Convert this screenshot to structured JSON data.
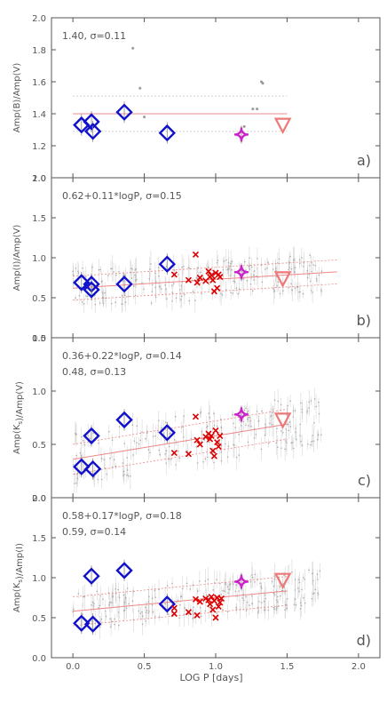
{
  "figure": {
    "xlabel": "LOG P [days]"
  },
  "colors": {
    "frame": "#555555",
    "blue": "#1111cc",
    "red": "#dd0000",
    "magenta": "#cc22cc",
    "salmon": "#ee7777",
    "fit": "#ee8888",
    "scatter": "#bbbbbb"
  },
  "chart_data": [
    {
      "type": "scatter",
      "panel": "a)",
      "ylabel": "Amp(B)/Amp(V)",
      "annotation": "1.40, σ=0.11",
      "annotation2": "",
      "xlim": [
        -0.15,
        2.15
      ],
      "ylim": [
        1.0,
        2.0
      ],
      "yticks": [
        "1.0",
        "1.2",
        "1.4",
        "1.6",
        "1.8",
        "2.0"
      ],
      "xticks": [],
      "fit": {
        "type": "constant",
        "value": 1.4,
        "sigma": 0.11,
        "x_range": [
          0.0,
          1.5
        ]
      },
      "series": [
        {
          "kind": "diamond-blue",
          "points": [
            [
              0.06,
              1.33
            ],
            [
              0.13,
              1.35
            ],
            [
              0.14,
              1.29
            ],
            [
              0.36,
              1.41
            ],
            [
              0.66,
              1.28
            ]
          ]
        },
        {
          "kind": "cross-red",
          "points": []
        },
        {
          "kind": "star-magenta",
          "points": [
            [
              1.18,
              1.27
            ]
          ]
        },
        {
          "kind": "triangle-salmon",
          "points": [
            [
              1.47,
              1.33
            ]
          ]
        },
        {
          "kind": "dot-grey",
          "points": [
            [
              0.42,
              1.81
            ],
            [
              0.47,
              1.56
            ],
            [
              0.5,
              1.38
            ],
            [
              1.2,
              1.32
            ],
            [
              1.26,
              1.43
            ],
            [
              1.29,
              1.43
            ],
            [
              1.32,
              1.6
            ],
            [
              1.33,
              1.59
            ]
          ]
        }
      ]
    },
    {
      "type": "scatter",
      "panel": "b)",
      "ylabel": "Amp(I)/Amp(V)",
      "annotation": "0.62+0.11*logP, σ=0.15",
      "annotation2": "",
      "xlim": [
        -0.15,
        2.15
      ],
      "ylim": [
        0.0,
        2.0
      ],
      "yticks": [
        "0.0",
        "0.5",
        "1.0",
        "1.5",
        "2.0"
      ],
      "xticks": [],
      "fit": {
        "type": "linear",
        "intercept": 0.62,
        "slope": 0.11,
        "sigma": 0.15,
        "x_range": [
          0.0,
          1.85
        ]
      },
      "series": [
        {
          "kind": "diamond-blue",
          "points": [
            [
              0.06,
              0.69
            ],
            [
              0.13,
              0.67
            ],
            [
              0.13,
              0.6
            ],
            [
              0.36,
              0.67
            ],
            [
              0.66,
              0.92
            ]
          ]
        },
        {
          "kind": "cross-red",
          "points": [
            [
              0.71,
              0.79
            ],
            [
              0.81,
              0.72
            ],
            [
              0.86,
              1.04
            ],
            [
              0.87,
              0.69
            ],
            [
              0.89,
              0.75
            ],
            [
              0.93,
              0.71
            ],
            [
              0.95,
              0.83
            ],
            [
              0.96,
              0.76
            ],
            [
              0.97,
              0.78
            ],
            [
              0.98,
              0.72
            ],
            [
              0.99,
              0.58
            ],
            [
              1.0,
              0.81
            ],
            [
              1.01,
              0.62
            ],
            [
              1.02,
              0.79
            ],
            [
              1.03,
              0.76
            ]
          ]
        },
        {
          "kind": "star-magenta",
          "points": [
            [
              1.18,
              0.82
            ]
          ]
        },
        {
          "kind": "triangle-salmon",
          "points": [
            [
              1.47,
              0.74
            ]
          ]
        },
        {
          "kind": "dot-grey",
          "points": []
        }
      ]
    },
    {
      "type": "scatter",
      "panel": "c)",
      "ylabel": "Amp(K_s)/Amp(V)",
      "annotation": "0.36+0.22*logP, σ=0.14",
      "annotation2": "0.48, σ=0.13",
      "xlim": [
        -0.15,
        2.15
      ],
      "ylim": [
        0.0,
        1.5
      ],
      "yticks": [
        "0.0",
        "0.5",
        "1.0",
        "1.5"
      ],
      "xticks": [],
      "fit": {
        "type": "linear",
        "intercept": 0.36,
        "slope": 0.22,
        "sigma": 0.14,
        "x_range": [
          0.0,
          1.5
        ]
      },
      "series": [
        {
          "kind": "diamond-blue",
          "points": [
            [
              0.06,
              0.29
            ],
            [
              0.13,
              0.58
            ],
            [
              0.14,
              0.27
            ],
            [
              0.36,
              0.73
            ],
            [
              0.66,
              0.61
            ]
          ]
        },
        {
          "kind": "cross-red",
          "points": [
            [
              0.71,
              0.42
            ],
            [
              0.81,
              0.41
            ],
            [
              0.86,
              0.76
            ],
            [
              0.87,
              0.54
            ],
            [
              0.89,
              0.5
            ],
            [
              0.93,
              0.57
            ],
            [
              0.95,
              0.6
            ],
            [
              0.96,
              0.55
            ],
            [
              0.97,
              0.58
            ],
            [
              0.98,
              0.44
            ],
            [
              0.99,
              0.39
            ],
            [
              1.0,
              0.63
            ],
            [
              1.01,
              0.52
            ],
            [
              1.02,
              0.48
            ],
            [
              1.03,
              0.58
            ]
          ]
        },
        {
          "kind": "star-magenta",
          "points": [
            [
              1.18,
              0.78
            ]
          ]
        },
        {
          "kind": "triangle-salmon",
          "points": [
            [
              1.47,
              0.73
            ]
          ]
        },
        {
          "kind": "dot-grey",
          "points": []
        }
      ]
    },
    {
      "type": "scatter",
      "panel": "d)",
      "ylabel": "Amp(K_s)/Amp(I)",
      "annotation": "0.58+0.17*logP, σ=0.18",
      "annotation2": "0.59, σ=0.14",
      "xlim": [
        -0.15,
        2.15
      ],
      "ylim": [
        0.0,
        2.0
      ],
      "yticks": [
        "0.0",
        "0.5",
        "1.0",
        "1.5",
        "2.0"
      ],
      "xticks": [
        "0.0",
        "0.5",
        "1.0",
        "1.5",
        "2.0"
      ],
      "fit": {
        "type": "linear",
        "intercept": 0.58,
        "slope": 0.17,
        "sigma": 0.18,
        "x_range": [
          0.0,
          1.5
        ]
      },
      "series": [
        {
          "kind": "diamond-blue",
          "points": [
            [
              0.06,
              0.43
            ],
            [
              0.13,
              1.02
            ],
            [
              0.14,
              0.42
            ],
            [
              0.36,
              1.09
            ],
            [
              0.66,
              0.67
            ]
          ]
        },
        {
          "kind": "cross-red",
          "points": [
            [
              0.71,
              0.55
            ],
            [
              0.71,
              0.62
            ],
            [
              0.81,
              0.57
            ],
            [
              0.86,
              0.73
            ],
            [
              0.87,
              0.53
            ],
            [
              0.89,
              0.7
            ],
            [
              0.93,
              0.74
            ],
            [
              0.95,
              0.72
            ],
            [
              0.96,
              0.67
            ],
            [
              0.97,
              0.76
            ],
            [
              0.98,
              0.6
            ],
            [
              0.99,
              0.71
            ],
            [
              1.0,
              0.5
            ],
            [
              1.01,
              0.75
            ],
            [
              1.02,
              0.64
            ],
            [
              1.03,
              0.69
            ],
            [
              1.04,
              0.74
            ]
          ]
        },
        {
          "kind": "star-magenta",
          "points": [
            [
              1.18,
              0.95
            ]
          ]
        },
        {
          "kind": "triangle-salmon",
          "points": [
            [
              1.47,
              0.97
            ]
          ]
        },
        {
          "kind": "dot-grey",
          "points": []
        }
      ]
    }
  ]
}
